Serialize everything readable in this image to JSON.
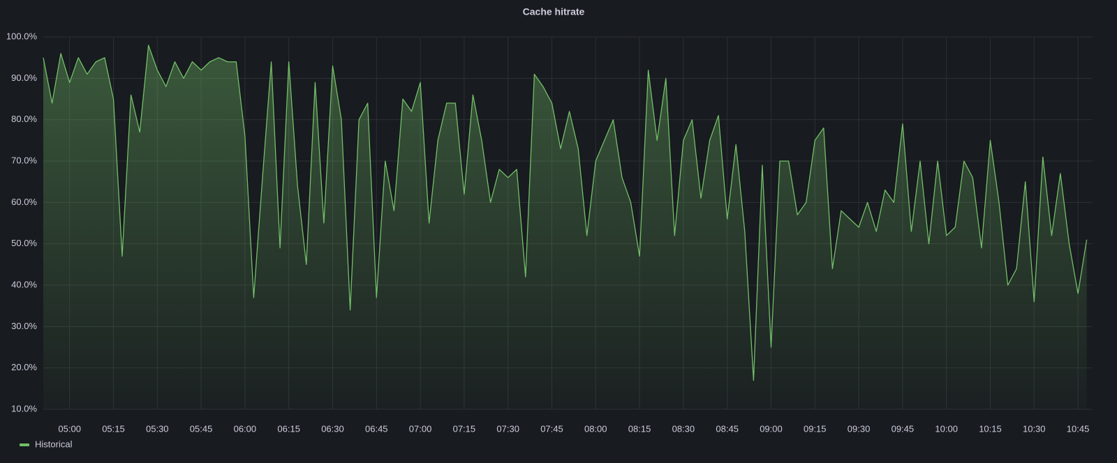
{
  "chart_data": {
    "type": "line",
    "title": "Cache hitrate",
    "x": [
      "04:51",
      "04:54",
      "04:57",
      "05:00",
      "05:03",
      "05:06",
      "05:09",
      "05:12",
      "05:15",
      "05:18",
      "05:21",
      "05:24",
      "05:27",
      "05:30",
      "05:33",
      "05:36",
      "05:39",
      "05:42",
      "05:45",
      "05:48",
      "05:51",
      "05:54",
      "05:57",
      "06:00",
      "06:03",
      "06:06",
      "06:09",
      "06:12",
      "06:15",
      "06:18",
      "06:21",
      "06:24",
      "06:27",
      "06:30",
      "06:33",
      "06:36",
      "06:39",
      "06:42",
      "06:45",
      "06:48",
      "06:51",
      "06:54",
      "06:57",
      "07:00",
      "07:03",
      "07:06",
      "07:09",
      "07:12",
      "07:15",
      "07:18",
      "07:21",
      "07:24",
      "07:27",
      "07:30",
      "07:33",
      "07:36",
      "07:39",
      "07:42",
      "07:45",
      "07:48",
      "07:51",
      "07:54",
      "07:57",
      "08:00",
      "08:03",
      "08:06",
      "08:09",
      "08:12",
      "08:15",
      "08:18",
      "08:21",
      "08:24",
      "08:27",
      "08:30",
      "08:33",
      "08:36",
      "08:39",
      "08:42",
      "08:45",
      "08:48",
      "08:51",
      "08:54",
      "08:57",
      "09:00",
      "09:03",
      "09:06",
      "09:09",
      "09:12",
      "09:15",
      "09:18",
      "09:21",
      "09:24",
      "09:27",
      "09:30",
      "09:33",
      "09:36",
      "09:39",
      "09:42",
      "09:45",
      "09:48",
      "09:51",
      "09:54",
      "09:57",
      "10:00",
      "10:03",
      "10:06",
      "10:09",
      "10:12",
      "10:15",
      "10:18",
      "10:21",
      "10:24",
      "10:27",
      "10:30",
      "10:33",
      "10:36",
      "10:39",
      "10:42",
      "10:45",
      "10:48"
    ],
    "series": [
      {
        "name": "Historical",
        "color": "#73bf69",
        "values": [
          95,
          84,
          96,
          89,
          95,
          91,
          94,
          95,
          85,
          47,
          86,
          77,
          98,
          92,
          88,
          94,
          90,
          94,
          92,
          94,
          95,
          94,
          94,
          76,
          37,
          66,
          94,
          49,
          94,
          64,
          45,
          89,
          55,
          93,
          80,
          34,
          80,
          84,
          37,
          70,
          58,
          85,
          82,
          89,
          55,
          75,
          84,
          84,
          62,
          86,
          75,
          60,
          68,
          66,
          68,
          42,
          91,
          88,
          84,
          73,
          82,
          73,
          52,
          70,
          75,
          80,
          66,
          60,
          47,
          92,
          75,
          90,
          52,
          75,
          80,
          61,
          75,
          81,
          56,
          74,
          53,
          17,
          69,
          25,
          70,
          70,
          57,
          60,
          75,
          78,
          44,
          58,
          56,
          54,
          60,
          53,
          63,
          60,
          79,
          53,
          70,
          50,
          70,
          52,
          54,
          70,
          66,
          49,
          75,
          60,
          40,
          44,
          65,
          36,
          71,
          52,
          67,
          50,
          38,
          51
        ]
      }
    ],
    "xlim": [
      "04:51",
      "10:50"
    ],
    "xticks": [
      "05:00",
      "05:15",
      "05:30",
      "05:45",
      "06:00",
      "06:15",
      "06:30",
      "06:45",
      "07:00",
      "07:15",
      "07:30",
      "07:45",
      "08:00",
      "08:15",
      "08:30",
      "08:45",
      "09:00",
      "09:15",
      "09:30",
      "09:45",
      "10:00",
      "10:15",
      "10:30",
      "10:45"
    ],
    "ylim": [
      10,
      100
    ],
    "yticks": [
      {
        "value": 10,
        "label": "10.0%"
      },
      {
        "value": 20,
        "label": "20.0%"
      },
      {
        "value": 30,
        "label": "30.0%"
      },
      {
        "value": 40,
        "label": "40.0%"
      },
      {
        "value": 50,
        "label": "50.0%"
      },
      {
        "value": 60,
        "label": "60.0%"
      },
      {
        "value": 70,
        "label": "70.0%"
      },
      {
        "value": 80,
        "label": "80.0%"
      },
      {
        "value": 90,
        "label": "90.0%"
      },
      {
        "value": 100,
        "label": "100.0%"
      }
    ],
    "grid": true,
    "legend": "bottom-left"
  }
}
